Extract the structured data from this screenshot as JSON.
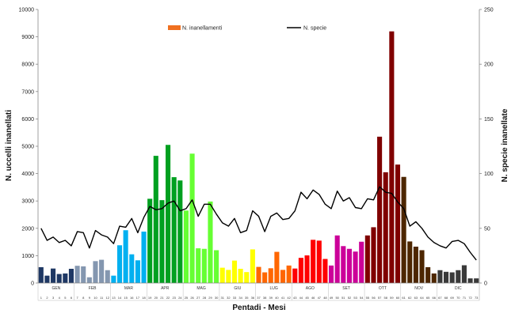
{
  "chart_data": {
    "type": "bar",
    "title": "",
    "xlabel": "Pentadi - Mesi",
    "ylabel": "N. uccelli inanellati",
    "y2label": "N. specie inanellate",
    "ylim": [
      0,
      10000
    ],
    "y2lim": [
      0,
      250
    ],
    "yticks": [
      "0",
      "1000",
      "2000",
      "3000",
      "4000",
      "5000",
      "6000",
      "7000",
      "8000",
      "9000",
      "10000"
    ],
    "y2ticks": [
      "0",
      "50",
      "100",
      "150",
      "200",
      "250"
    ],
    "grid": false,
    "legend_position": "top",
    "categories": [
      "1",
      "2",
      "3",
      "4",
      "5",
      "6",
      "7",
      "8",
      "9",
      "10",
      "11",
      "12",
      "13",
      "14",
      "15",
      "16",
      "17",
      "18",
      "19",
      "20",
      "21",
      "22",
      "23",
      "24",
      "25",
      "26",
      "27",
      "28",
      "29",
      "30",
      "31",
      "32",
      "33",
      "34",
      "35",
      "36",
      "37",
      "38",
      "39",
      "40",
      "41",
      "42",
      "43",
      "44",
      "45",
      "46",
      "47",
      "48",
      "49",
      "50",
      "51",
      "52",
      "53",
      "54",
      "55",
      "56",
      "57",
      "58",
      "59",
      "60",
      "61",
      "62",
      "63",
      "64",
      "65",
      "66",
      "67",
      "68",
      "69",
      "70",
      "71",
      "72",
      "73"
    ],
    "months": [
      {
        "label": "GEN",
        "start": 1,
        "end": 6,
        "color": "#1f3864"
      },
      {
        "label": "FEB",
        "start": 7,
        "end": 12,
        "color": "#8497b0"
      },
      {
        "label": "MAR",
        "start": 13,
        "end": 18,
        "color": "#00b0f0"
      },
      {
        "label": "APR",
        "start": 19,
        "end": 24,
        "color": "#00a020"
      },
      {
        "label": "MAG",
        "start": 25,
        "end": 30,
        "color": "#66ff33"
      },
      {
        "label": "GIU",
        "start": 31,
        "end": 36,
        "color": "#ffff00"
      },
      {
        "label": "LUG",
        "start": 37,
        "end": 42,
        "color": "#ff6600"
      },
      {
        "label": "AGO",
        "start": 43,
        "end": 48,
        "color": "#ff0000"
      },
      {
        "label": "SET",
        "start": 49,
        "end": 54,
        "color": "#cc0099"
      },
      {
        "label": "OTT",
        "start": 55,
        "end": 60,
        "color": "#800000"
      },
      {
        "label": "NOV",
        "start": 61,
        "end": 66,
        "color": "#4d2600"
      },
      {
        "label": "DIC",
        "start": 67,
        "end": 73,
        "color": "#3a3a3a"
      }
    ],
    "series": [
      {
        "name": "N. inanellamenti",
        "type": "bar",
        "axis": "left",
        "legend_color": "#f07020",
        "values": [
          580,
          270,
          530,
          330,
          350,
          520,
          630,
          610,
          210,
          800,
          850,
          470,
          270,
          1380,
          1930,
          1050,
          830,
          1880,
          3080,
          4650,
          3030,
          5050,
          3870,
          3750,
          2650,
          4730,
          1270,
          1250,
          2980,
          1200,
          560,
          480,
          820,
          520,
          400,
          1230,
          590,
          390,
          540,
          1140,
          480,
          640,
          530,
          920,
          1010,
          1580,
          1550,
          880,
          640,
          1740,
          1350,
          1250,
          1150,
          1510,
          1740,
          2040,
          5350,
          4050,
          9200,
          4330,
          3880,
          1520,
          1330,
          1200,
          580,
          350,
          470,
          410,
          390,
          470,
          650,
          170,
          170
        ]
      },
      {
        "name": "N. specie",
        "type": "line",
        "axis": "right",
        "legend_color": "#000000",
        "values": [
          50,
          39,
          42,
          37,
          39,
          34,
          47,
          46,
          32,
          48,
          44,
          42,
          36,
          52,
          51,
          59,
          46,
          60,
          70,
          67,
          68,
          73,
          75,
          66,
          68,
          76,
          61,
          72,
          72,
          63,
          55,
          52,
          59,
          46,
          48,
          66,
          61,
          47,
          61,
          64,
          58,
          59,
          66,
          83,
          77,
          85,
          81,
          72,
          68,
          84,
          75,
          78,
          69,
          68,
          77,
          76,
          88,
          83,
          82,
          74,
          68,
          52,
          56,
          50,
          42,
          37,
          34,
          32,
          38,
          39,
          36,
          28,
          21
        ]
      }
    ]
  }
}
